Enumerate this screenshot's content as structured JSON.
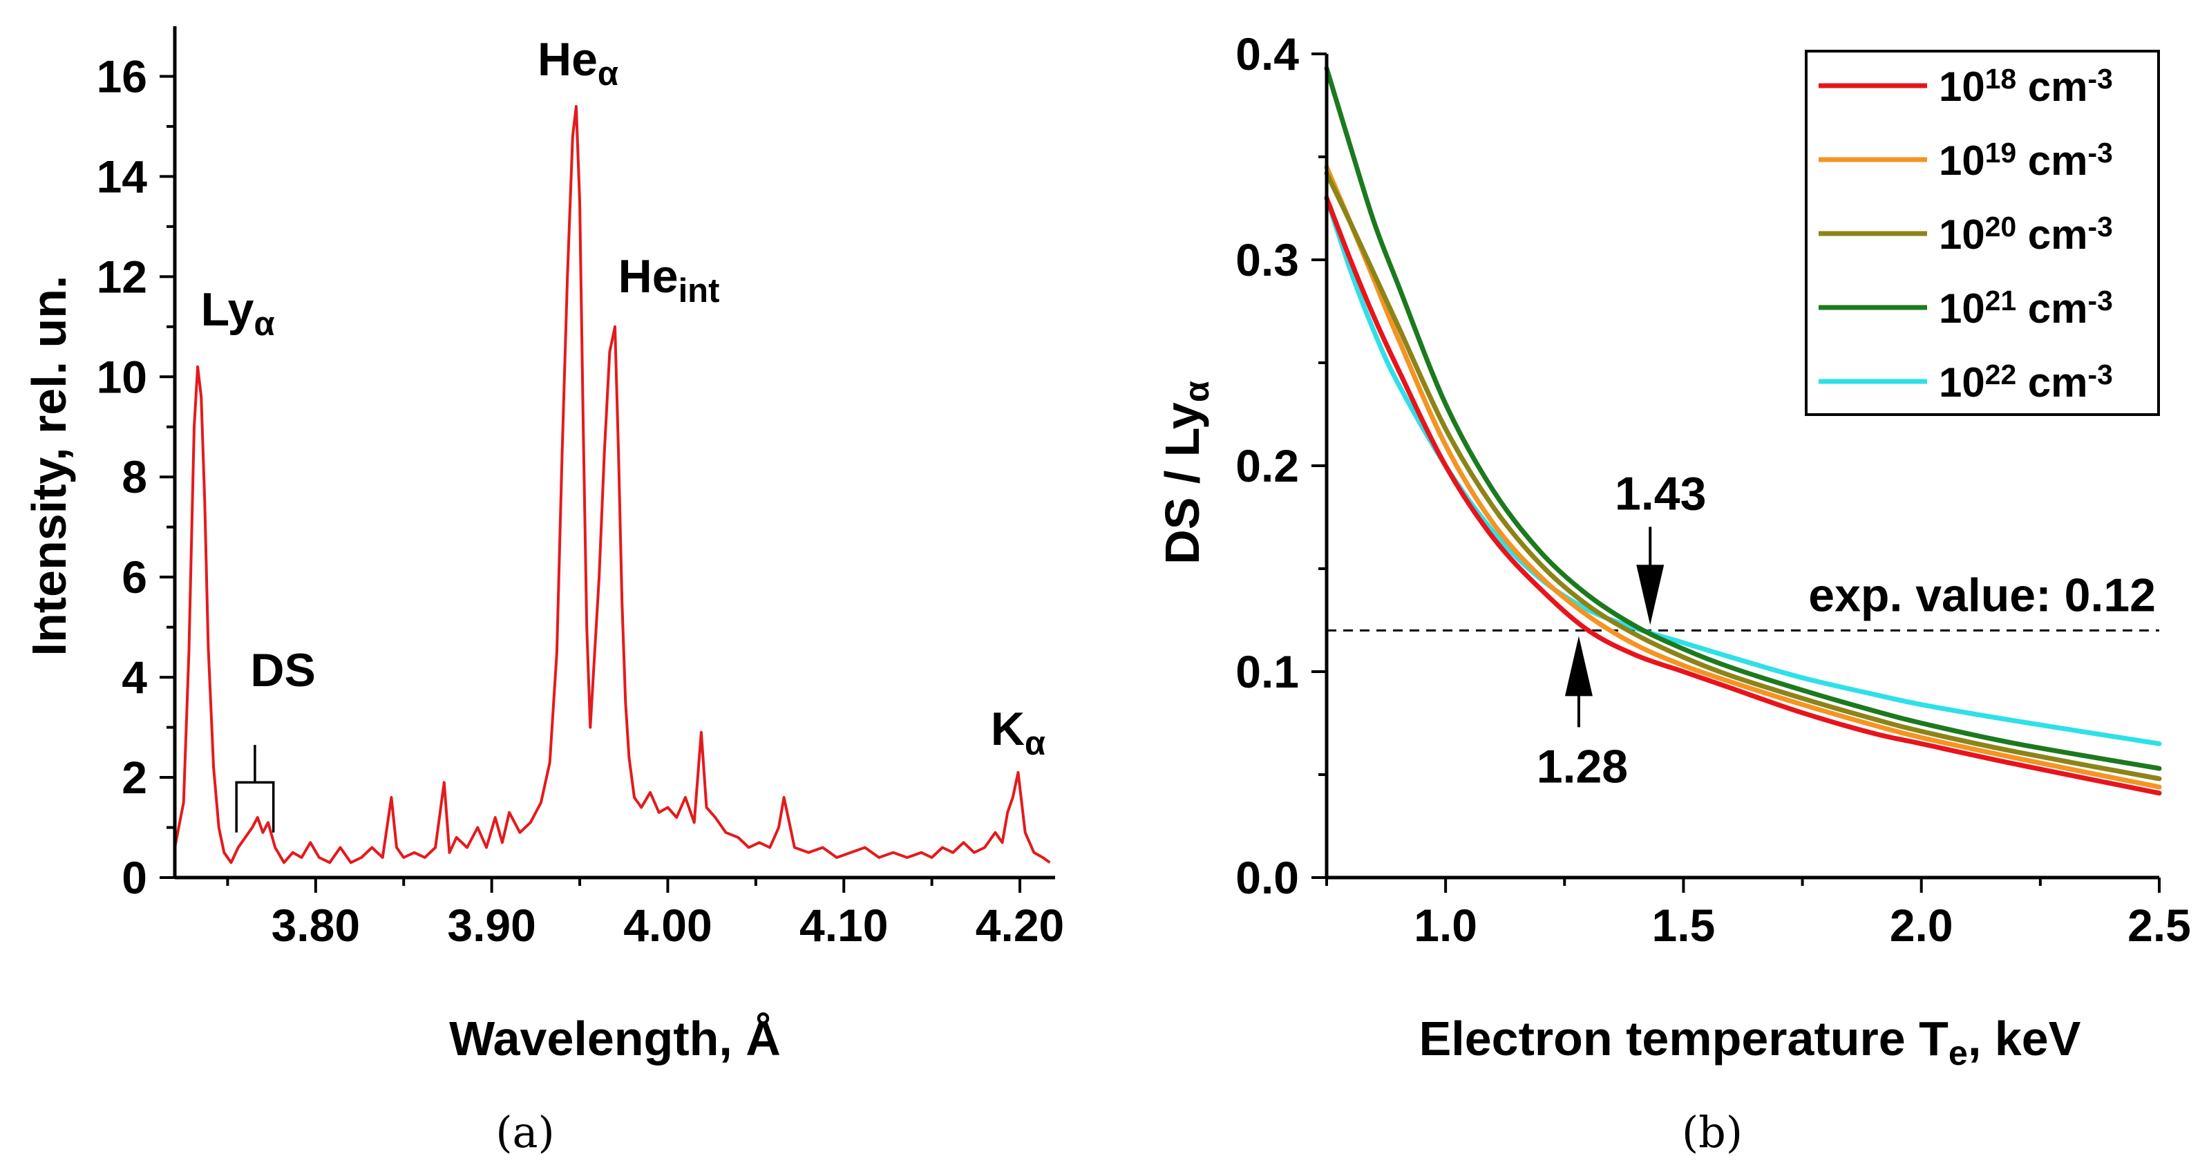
{
  "chart_data": [
    {
      "type": "line",
      "panel_label": "(a)",
      "xlabel": "Wavelength, Å",
      "ylabel": "Intensity, rel. un.",
      "xlim": [
        3.72,
        4.22
      ],
      "ylim": [
        0,
        17
      ],
      "xticks": [
        "3.80",
        "3.90",
        "4.00",
        "4.10",
        "4.20"
      ],
      "yticks": [
        "0",
        "2",
        "4",
        "6",
        "8",
        "10",
        "12",
        "14",
        "16"
      ],
      "color": "#e41a1c",
      "series": [
        {
          "name": "spectrum",
          "x": [
            3.72,
            3.725,
            3.728,
            3.731,
            3.733,
            3.735,
            3.737,
            3.739,
            3.742,
            3.745,
            3.748,
            3.752,
            3.756,
            3.76,
            3.764,
            3.767,
            3.77,
            3.773,
            3.777,
            3.782,
            3.787,
            3.792,
            3.797,
            3.802,
            3.808,
            3.814,
            3.82,
            3.826,
            3.832,
            3.838,
            3.843,
            3.846,
            3.85,
            3.856,
            3.862,
            3.868,
            3.873,
            3.876,
            3.88,
            3.886,
            3.892,
            3.897,
            3.902,
            3.906,
            3.91,
            3.916,
            3.922,
            3.928,
            3.933,
            3.937,
            3.94,
            3.943,
            3.946,
            3.948,
            3.95,
            3.952,
            3.954,
            3.956,
            3.958,
            3.961,
            3.964,
            3.967,
            3.97,
            3.972,
            3.974,
            3.976,
            3.978,
            3.981,
            3.985,
            3.99,
            3.995,
            4.0,
            4.005,
            4.01,
            4.015,
            4.019,
            4.022,
            4.027,
            4.033,
            4.04,
            4.046,
            4.052,
            4.058,
            4.063,
            4.066,
            4.072,
            4.08,
            4.088,
            4.096,
            4.104,
            4.112,
            4.12,
            4.128,
            4.136,
            4.144,
            4.15,
            4.156,
            4.162,
            4.168,
            4.174,
            4.18,
            4.186,
            4.19,
            4.193,
            4.196,
            4.199,
            4.203,
            4.208,
            4.213,
            4.217
          ],
          "y": [
            0.6,
            1.5,
            4.5,
            9.0,
            10.2,
            9.6,
            7.5,
            4.6,
            2.2,
            1.0,
            0.5,
            0.3,
            0.6,
            0.8,
            1.0,
            1.2,
            0.9,
            1.1,
            0.6,
            0.3,
            0.5,
            0.4,
            0.7,
            0.4,
            0.3,
            0.6,
            0.3,
            0.4,
            0.6,
            0.4,
            1.6,
            0.6,
            0.4,
            0.5,
            0.4,
            0.6,
            1.9,
            0.5,
            0.8,
            0.6,
            1.0,
            0.6,
            1.2,
            0.7,
            1.3,
            0.9,
            1.1,
            1.5,
            2.3,
            4.5,
            8.5,
            12.0,
            14.8,
            15.4,
            13.5,
            9.0,
            5.0,
            3.0,
            4.2,
            6.0,
            8.5,
            10.5,
            11.0,
            8.5,
            5.5,
            3.5,
            2.4,
            1.6,
            1.4,
            1.7,
            1.3,
            1.4,
            1.2,
            1.6,
            1.1,
            2.9,
            1.4,
            1.2,
            0.9,
            0.8,
            0.6,
            0.7,
            0.6,
            1.0,
            1.6,
            0.6,
            0.5,
            0.6,
            0.4,
            0.5,
            0.6,
            0.4,
            0.5,
            0.4,
            0.5,
            0.4,
            0.6,
            0.5,
            0.7,
            0.5,
            0.6,
            0.9,
            0.7,
            1.3,
            1.6,
            2.1,
            0.9,
            0.5,
            0.4,
            0.3
          ]
        }
      ],
      "annotations": [
        {
          "text": "Ly",
          "sub": "α",
          "x": 3.733,
          "y": 10.2
        },
        {
          "text": "He",
          "sub": "α",
          "x": 3.949,
          "y": 15.4
        },
        {
          "text": "He",
          "sub": "int",
          "x": 3.97,
          "y": 11.0
        },
        {
          "text": "DS",
          "sub": "",
          "x": 3.765,
          "y": 1.2
        },
        {
          "text": "K",
          "sub": "α",
          "x": 4.199,
          "y": 2.1
        }
      ],
      "ds_bracket": {
        "x_start": 3.755,
        "x_end": 3.776,
        "y": 1.9
      }
    },
    {
      "type": "line",
      "panel_label": "(b)",
      "xlabel": "Electron temperature T",
      "xlabel_sub": "e",
      "xlabel_suffix": ", keV",
      "ylabel": "DS / Ly",
      "ylabel_sub": "α",
      "xlim": [
        0.75,
        2.5
      ],
      "ylim": [
        0.0,
        0.4
      ],
      "xticks": [
        "1.0",
        "1.5",
        "2.0",
        "2.5"
      ],
      "yticks": [
        "0.0",
        "0.1",
        "0.2",
        "0.3",
        "0.4"
      ],
      "x": [
        0.75,
        0.8,
        0.85,
        0.9,
        1.0,
        1.1,
        1.2,
        1.3,
        1.4,
        1.5,
        1.6,
        1.75,
        1.9,
        2.0,
        2.2,
        2.5
      ],
      "series": [
        {
          "name": "10",
          "exp": "18",
          "unit": " cm",
          "unit_exp": "-3",
          "color": "#e8141c",
          "values": [
            0.33,
            0.3,
            0.272,
            0.247,
            0.2,
            0.165,
            0.14,
            0.12,
            0.108,
            0.1,
            0.092,
            0.08,
            0.07,
            0.065,
            0.055,
            0.041
          ]
        },
        {
          "name": "10",
          "exp": "19",
          "unit": " cm",
          "unit_exp": "-3",
          "color": "#f39423",
          "values": [
            0.345,
            0.318,
            0.29,
            0.262,
            0.21,
            0.172,
            0.146,
            0.127,
            0.113,
            0.103,
            0.095,
            0.084,
            0.074,
            0.068,
            0.058,
            0.044
          ]
        },
        {
          "name": "10",
          "exp": "20",
          "unit": " cm",
          "unit_exp": "-3",
          "color": "#8c8419",
          "values": [
            0.342,
            0.318,
            0.293,
            0.268,
            0.218,
            0.18,
            0.152,
            0.132,
            0.118,
            0.107,
            0.098,
            0.087,
            0.077,
            0.071,
            0.061,
            0.048
          ]
        },
        {
          "name": "10",
          "exp": "21",
          "unit": " cm",
          "unit_exp": "-3",
          "color": "#1b7a1e",
          "values": [
            0.393,
            0.355,
            0.318,
            0.288,
            0.23,
            0.188,
            0.158,
            0.137,
            0.122,
            0.111,
            0.102,
            0.091,
            0.081,
            0.075,
            0.065,
            0.053
          ]
        },
        {
          "name": "10",
          "exp": "22",
          "unit": " cm",
          "unit_exp": "-3",
          "color": "#2ee0e8",
          "values": [
            0.33,
            0.295,
            0.265,
            0.24,
            0.2,
            0.168,
            0.145,
            0.13,
            0.121,
            0.114,
            0.107,
            0.097,
            0.089,
            0.084,
            0.076,
            0.065
          ]
        }
      ],
      "reference_line": {
        "y": 0.12,
        "label": "exp. value: 0.12",
        "style": "dashed"
      },
      "markers": [
        {
          "x": 1.28,
          "label": "1.28",
          "direction": "up"
        },
        {
          "x": 1.43,
          "label": "1.43",
          "direction": "down"
        }
      ],
      "legend_position": "top-right"
    }
  ]
}
